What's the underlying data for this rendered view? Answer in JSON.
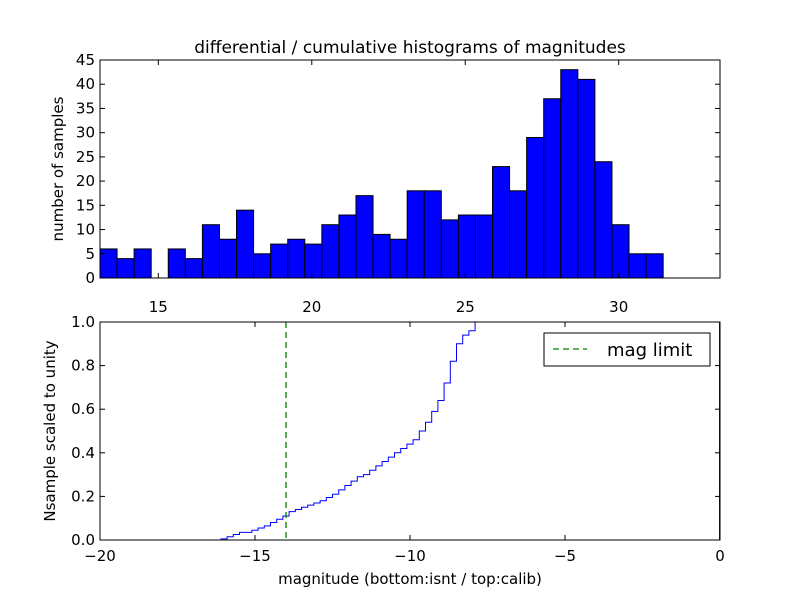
{
  "chart_data": [
    {
      "id": "top",
      "type": "bar",
      "title": "differential / cumulative histograms of magnitudes",
      "xlabel": "",
      "ylabel": "number of samples",
      "xlim": [
        13.1,
        33.3
      ],
      "ylim": [
        0,
        45
      ],
      "grid": false,
      "bar_color": "#0000ff",
      "edge_color": "#000000",
      "bin_start": 13.1,
      "bin_width": 0.556,
      "counts": [
        6,
        4,
        6,
        0,
        6,
        4,
        11,
        8,
        14,
        5,
        7,
        8,
        7,
        11,
        13,
        17,
        9,
        8,
        18,
        18,
        12,
        13,
        13,
        23,
        18,
        29,
        37,
        43,
        41,
        24,
        11,
        5,
        5,
        0,
        0,
        0
      ],
      "xticks": [
        15,
        20,
        25,
        30
      ],
      "xtick_labels": [
        "15",
        "20",
        "25",
        "30"
      ],
      "yticks": [
        0,
        5,
        10,
        15,
        20,
        25,
        30,
        35,
        40,
        45
      ],
      "ytick_labels": [
        "0",
        "5",
        "10",
        "15",
        "20",
        "25",
        "30",
        "35",
        "40",
        "45"
      ]
    },
    {
      "id": "bottom",
      "type": "line",
      "style": "step",
      "title": "",
      "xlabel": "magnitude (bottom:isnt / top:calib)",
      "ylabel": "Nsample scaled to unity",
      "xlim": [
        -20,
        0
      ],
      "ylim": [
        0,
        1
      ],
      "grid": false,
      "series": [
        {
          "name": "cumulative",
          "color": "#0000ff",
          "x": [
            -20,
            -16.1,
            -15.9,
            -15.7,
            -15.5,
            -15.3,
            -15.1,
            -14.9,
            -14.7,
            -14.5,
            -14.3,
            -14.1,
            -13.9,
            -13.7,
            -13.5,
            -13.3,
            -13.1,
            -12.9,
            -12.7,
            -12.5,
            -12.3,
            -12.1,
            -11.9,
            -11.7,
            -11.5,
            -11.3,
            -11.1,
            -10.9,
            -10.7,
            -10.5,
            -10.3,
            -10.1,
            -9.9,
            -9.7,
            -9.5,
            -9.3,
            -9.1,
            -8.9,
            -8.7,
            -8.5,
            -8.3,
            -8.1,
            -7.9
          ],
          "y": [
            0,
            0.005,
            0.015,
            0.025,
            0.035,
            0.035,
            0.045,
            0.055,
            0.065,
            0.08,
            0.095,
            0.11,
            0.13,
            0.14,
            0.15,
            0.16,
            0.17,
            0.18,
            0.195,
            0.21,
            0.23,
            0.25,
            0.27,
            0.29,
            0.3,
            0.32,
            0.34,
            0.36,
            0.38,
            0.4,
            0.42,
            0.44,
            0.46,
            0.5,
            0.54,
            0.59,
            0.64,
            0.72,
            0.82,
            0.9,
            0.94,
            0.96,
            1.0
          ]
        }
      ],
      "vline": {
        "name": "mag limit",
        "x": -14,
        "color": "#008000",
        "style": "dashed"
      },
      "right_edge_segment": {
        "x": 0,
        "y": [
          0,
          1
        ]
      },
      "legend": {
        "placement": "top-right",
        "entries": [
          "mag limit"
        ]
      },
      "xticks": [
        -20,
        -15,
        -10,
        -5,
        0
      ],
      "xtick_labels": [
        "−20",
        "−15",
        "−10",
        "−5",
        "0"
      ],
      "yticks": [
        0,
        0.2,
        0.4,
        0.6,
        0.8,
        1.0
      ],
      "ytick_labels": [
        "0.0",
        "0.2",
        "0.4",
        "0.6",
        "0.8",
        "1.0"
      ]
    }
  ]
}
